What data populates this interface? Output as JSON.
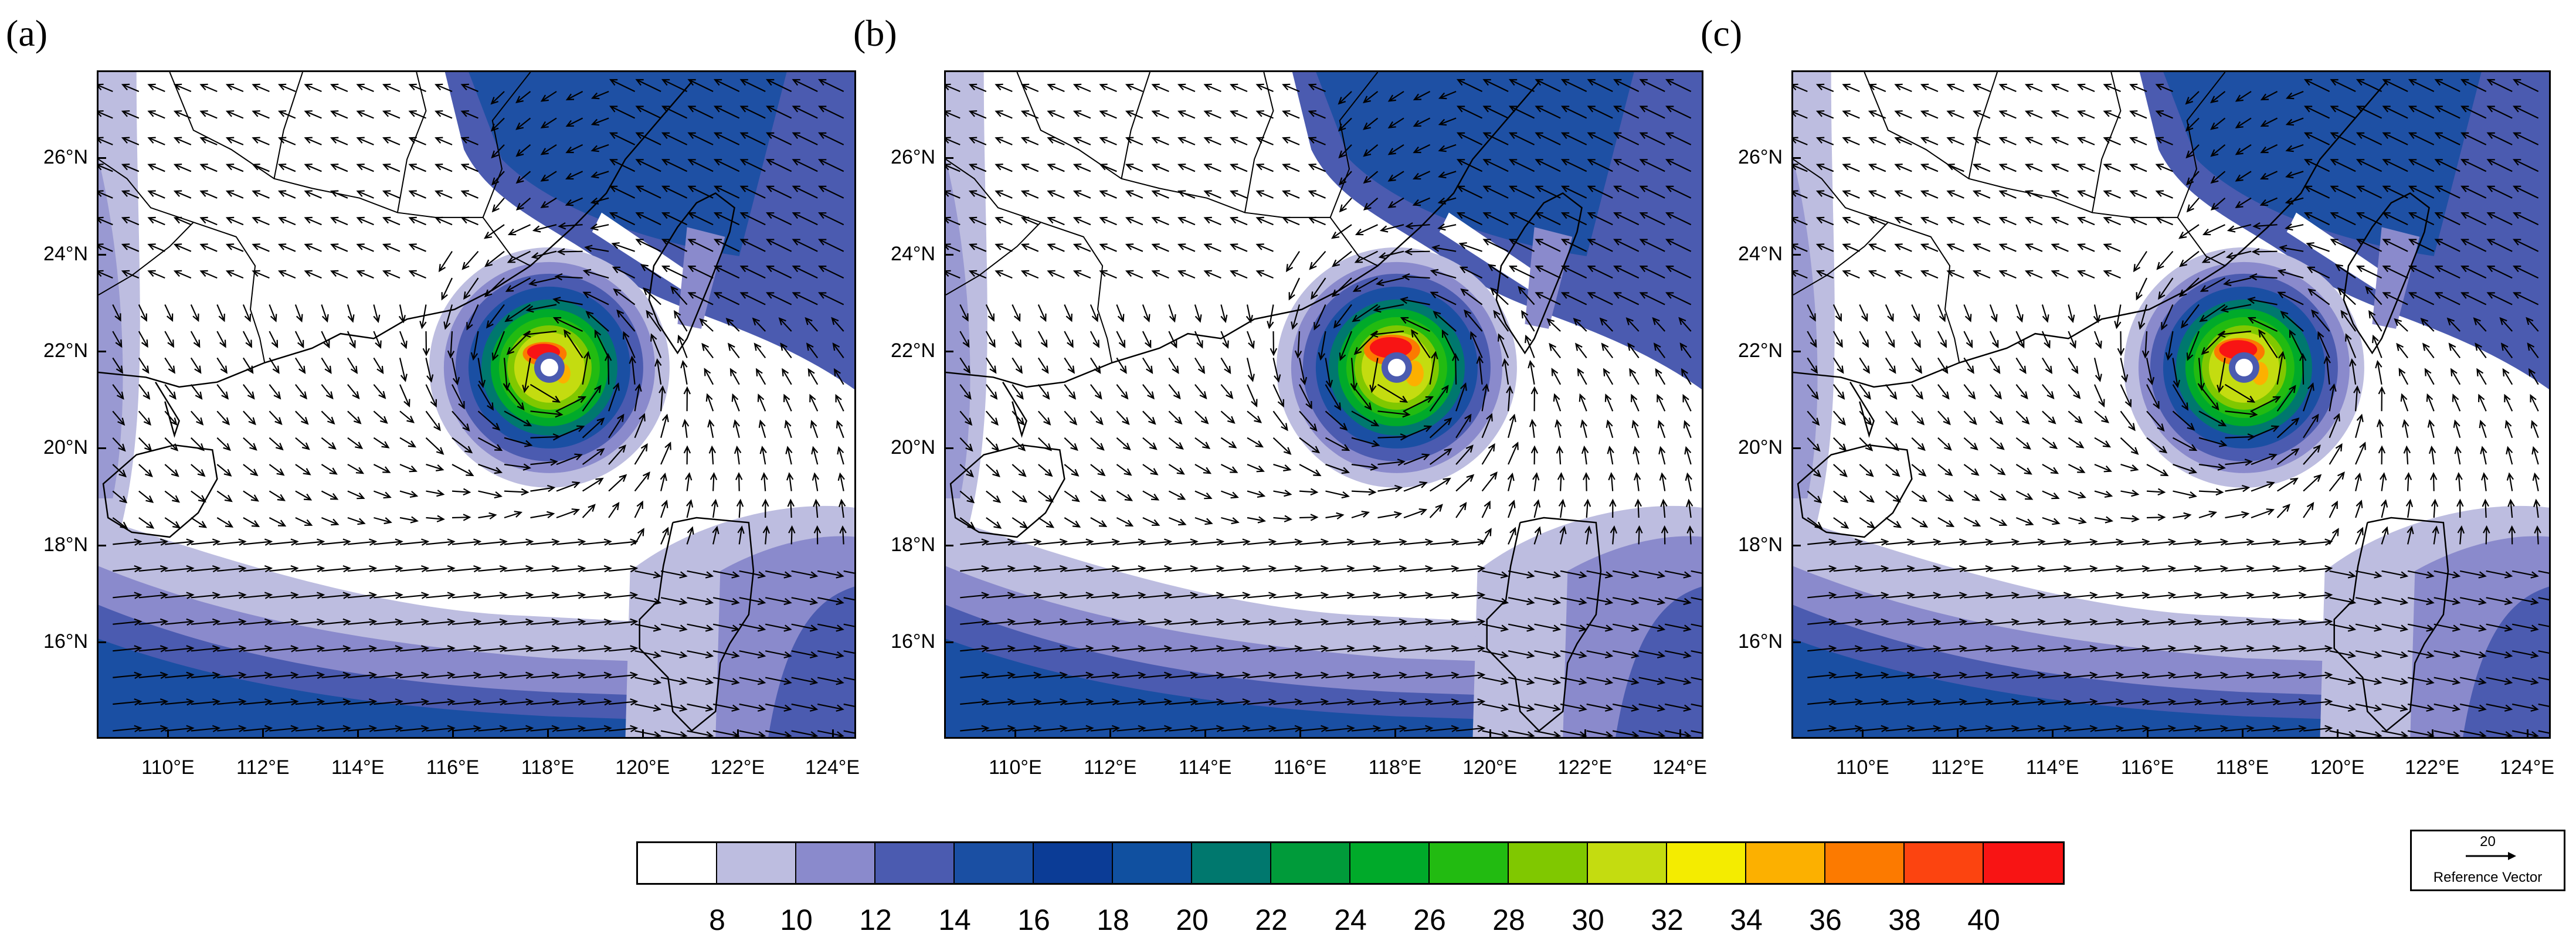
{
  "panels": [
    {
      "label": "(a)",
      "core_scale": 0.78
    },
    {
      "label": "(b)",
      "core_scale": 1.0
    },
    {
      "label": "(c)",
      "core_scale": 0.9
    }
  ],
  "map": {
    "lon_ticks": [
      "110°E",
      "112°E",
      "114°E",
      "116°E",
      "118°E",
      "120°E",
      "122°E",
      "124°E"
    ],
    "lat_ticks": [
      "26°N",
      "24°N",
      "22°N",
      "20°N",
      "18°N",
      "16°N"
    ],
    "lon_range": [
      108.5,
      124.5
    ],
    "lat_range": [
      14,
      27.8
    ]
  },
  "colorbar": {
    "labels": [
      "8",
      "10",
      "12",
      "14",
      "16",
      "18",
      "20",
      "22",
      "24",
      "26",
      "28",
      "30",
      "32",
      "34",
      "36",
      "38",
      "40"
    ],
    "colors": [
      "#ffffff",
      "#bdbde0",
      "#8a8acc",
      "#4b5bb0",
      "#1a4fa3",
      "#0b3c96",
      "#1050a0",
      "#00786e",
      "#009b3a",
      "#00aa2a",
      "#22bb11",
      "#80c800",
      "#c4dc10",
      "#f4ec00",
      "#fcb000",
      "#fc7a00",
      "#fc4410",
      "#f81414"
    ]
  },
  "reference_vector": {
    "value": "20",
    "label": "Reference Vector"
  },
  "colors": {
    "ocean_blue": "#1a4fa3",
    "light_purple": "#bdbde0",
    "mid_purple": "#8a8acc"
  }
}
